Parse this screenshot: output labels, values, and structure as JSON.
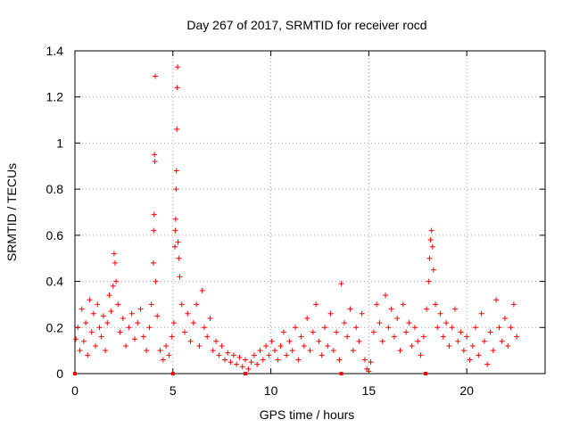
{
  "chart_data": {
    "type": "scatter",
    "title": "Day 267 of 2017, SRMTID for receiver rocd",
    "xlabel": "GPS time / hours",
    "ylabel": "SRMTID / TECUs",
    "xlim": [
      0,
      24
    ],
    "ylim": [
      0,
      1.4
    ],
    "xticks": [
      0,
      5,
      10,
      15,
      20
    ],
    "xtick_labels": [
      "0",
      "5",
      "10",
      "15",
      "20"
    ],
    "yticks": [
      0,
      0.2,
      0.4,
      0.6,
      0.8,
      1.0,
      1.2,
      1.4
    ],
    "ytick_labels": [
      "0",
      "0.2",
      "0.4",
      "0.6",
      "0.8",
      "1",
      "1.2",
      "1.4"
    ],
    "grid": true,
    "marker": "+",
    "color": "#ff0000",
    "series": [
      {
        "name": "SRMTID",
        "points": [
          [
            0.05,
            0.15
          ],
          [
            0.15,
            0.2
          ],
          [
            0.25,
            0.1
          ],
          [
            0.35,
            0.28
          ],
          [
            0.45,
            0.14
          ],
          [
            0.55,
            0.22
          ],
          [
            0.65,
            0.08
          ],
          [
            0.75,
            0.32
          ],
          [
            0.85,
            0.18
          ],
          [
            0.95,
            0.26
          ],
          [
            1.05,
            0.12
          ],
          [
            1.15,
            0.3
          ],
          [
            1.25,
            0.2
          ],
          [
            1.35,
            0.16
          ],
          [
            1.45,
            0.25
          ],
          [
            1.55,
            0.1
          ],
          [
            1.65,
            0.22
          ],
          [
            1.75,
            0.34
          ],
          [
            1.85,
            0.27
          ],
          [
            1.95,
            0.38
          ],
          [
            2.0,
            0.52
          ],
          [
            2.05,
            0.48
          ],
          [
            2.1,
            0.4
          ],
          [
            2.2,
            0.3
          ],
          [
            2.3,
            0.18
          ],
          [
            2.45,
            0.24
          ],
          [
            2.6,
            0.12
          ],
          [
            2.75,
            0.2
          ],
          [
            2.9,
            0.26
          ],
          [
            3.05,
            0.15
          ],
          [
            3.2,
            0.22
          ],
          [
            3.35,
            0.28
          ],
          [
            3.5,
            0.16
          ],
          [
            3.65,
            0.1
          ],
          [
            3.8,
            0.2
          ],
          [
            3.9,
            0.3
          ],
          [
            4.0,
            0.48
          ],
          [
            4.02,
            0.62
          ],
          [
            4.04,
            0.69
          ],
          [
            4.06,
            0.95
          ],
          [
            4.08,
            0.92
          ],
          [
            4.1,
            1.29
          ],
          [
            4.12,
            0.4
          ],
          [
            4.2,
            0.25
          ],
          [
            4.35,
            0.1
          ],
          [
            4.5,
            0.06
          ],
          [
            4.65,
            0.12
          ],
          [
            4.8,
            0.08
          ],
          [
            4.95,
            0.16
          ],
          [
            5.05,
            0.22
          ],
          [
            5.1,
            0.55
          ],
          [
            5.12,
            0.62
          ],
          [
            5.14,
            0.67
          ],
          [
            5.16,
            0.8
          ],
          [
            5.18,
            0.88
          ],
          [
            5.2,
            1.06
          ],
          [
            5.22,
            1.24
          ],
          [
            5.24,
            1.33
          ],
          [
            5.26,
            0.57
          ],
          [
            5.3,
            0.5
          ],
          [
            5.35,
            0.42
          ],
          [
            5.45,
            0.3
          ],
          [
            5.6,
            0.18
          ],
          [
            5.75,
            0.26
          ],
          [
            5.9,
            0.14
          ],
          [
            6.05,
            0.22
          ],
          [
            6.2,
            0.3
          ],
          [
            6.35,
            0.12
          ],
          [
            6.5,
            0.36
          ],
          [
            6.6,
            0.2
          ],
          [
            6.75,
            0.16
          ],
          [
            6.9,
            0.24
          ],
          [
            7.05,
            0.1
          ],
          [
            7.2,
            0.14
          ],
          [
            7.35,
            0.08
          ],
          [
            7.5,
            0.12
          ],
          [
            7.65,
            0.06
          ],
          [
            7.8,
            0.09
          ],
          [
            7.95,
            0.05
          ],
          [
            8.1,
            0.08
          ],
          [
            8.25,
            0.04
          ],
          [
            8.4,
            0.07
          ],
          [
            8.55,
            0.03
          ],
          [
            8.7,
            0.06
          ],
          [
            8.85,
            0.02
          ],
          [
            9.0,
            0.05
          ],
          [
            9.15,
            0.08
          ],
          [
            9.3,
            0.04
          ],
          [
            9.45,
            0.1
          ],
          [
            9.6,
            0.06
          ],
          [
            9.75,
            0.12
          ],
          [
            9.9,
            0.08
          ],
          [
            10.05,
            0.14
          ],
          [
            10.2,
            0.1
          ],
          [
            10.35,
            0.06
          ],
          [
            10.5,
            0.12
          ],
          [
            10.65,
            0.18
          ],
          [
            10.8,
            0.08
          ],
          [
            10.95,
            0.14
          ],
          [
            11.1,
            0.1
          ],
          [
            11.25,
            0.2
          ],
          [
            11.4,
            0.06
          ],
          [
            11.55,
            0.16
          ],
          [
            11.7,
            0.12
          ],
          [
            11.85,
            0.24
          ],
          [
            12.0,
            0.1
          ],
          [
            12.15,
            0.18
          ],
          [
            12.3,
            0.3
          ],
          [
            12.45,
            0.14
          ],
          [
            12.6,
            0.08
          ],
          [
            12.75,
            0.2
          ],
          [
            12.9,
            0.12
          ],
          [
            13.05,
            0.26
          ],
          [
            13.2,
            0.1
          ],
          [
            13.35,
            0.18
          ],
          [
            13.5,
            0.06
          ],
          [
            13.6,
            0.39
          ],
          [
            13.75,
            0.22
          ],
          [
            13.9,
            0.16
          ],
          [
            14.05,
            0.28
          ],
          [
            14.2,
            0.1
          ],
          [
            14.35,
            0.2
          ],
          [
            14.5,
            0.14
          ],
          [
            14.65,
            0.26
          ],
          [
            14.8,
            0.06
          ],
          [
            14.9,
            0.02
          ],
          [
            15.0,
            0.01
          ],
          [
            15.1,
            0.05
          ],
          [
            15.25,
            0.18
          ],
          [
            15.4,
            0.3
          ],
          [
            15.55,
            0.22
          ],
          [
            15.7,
            0.14
          ],
          [
            15.85,
            0.34
          ],
          [
            16.0,
            0.2
          ],
          [
            16.15,
            0.28
          ],
          [
            16.3,
            0.16
          ],
          [
            16.45,
            0.24
          ],
          [
            16.6,
            0.1
          ],
          [
            16.75,
            0.3
          ],
          [
            16.9,
            0.18
          ],
          [
            17.05,
            0.22
          ],
          [
            17.2,
            0.12
          ],
          [
            17.35,
            0.2
          ],
          [
            17.5,
            0.14
          ],
          [
            17.65,
            0.08
          ],
          [
            17.8,
            0.16
          ],
          [
            17.95,
            0.28
          ],
          [
            18.05,
            0.4
          ],
          [
            18.1,
            0.5
          ],
          [
            18.15,
            0.58
          ],
          [
            18.2,
            0.62
          ],
          [
            18.25,
            0.55
          ],
          [
            18.3,
            0.45
          ],
          [
            18.4,
            0.3
          ],
          [
            18.5,
            0.2
          ],
          [
            18.65,
            0.26
          ],
          [
            18.8,
            0.16
          ],
          [
            18.95,
            0.22
          ],
          [
            19.1,
            0.12
          ],
          [
            19.25,
            0.2
          ],
          [
            19.4,
            0.28
          ],
          [
            19.55,
            0.14
          ],
          [
            19.7,
            0.18
          ],
          [
            19.85,
            0.1
          ],
          [
            20.0,
            0.16
          ],
          [
            20.15,
            0.06
          ],
          [
            20.3,
            0.12
          ],
          [
            20.45,
            0.2
          ],
          [
            20.6,
            0.08
          ],
          [
            20.75,
            0.26
          ],
          [
            20.9,
            0.14
          ],
          [
            21.05,
            0.04
          ],
          [
            21.2,
            0.18
          ],
          [
            21.35,
            0.1
          ],
          [
            21.5,
            0.32
          ],
          [
            21.65,
            0.2
          ],
          [
            21.8,
            0.14
          ],
          [
            21.95,
            0.24
          ],
          [
            22.1,
            0.12
          ],
          [
            22.25,
            0.2
          ],
          [
            22.4,
            0.3
          ],
          [
            22.55,
            0.16
          ]
        ]
      }
    ]
  }
}
